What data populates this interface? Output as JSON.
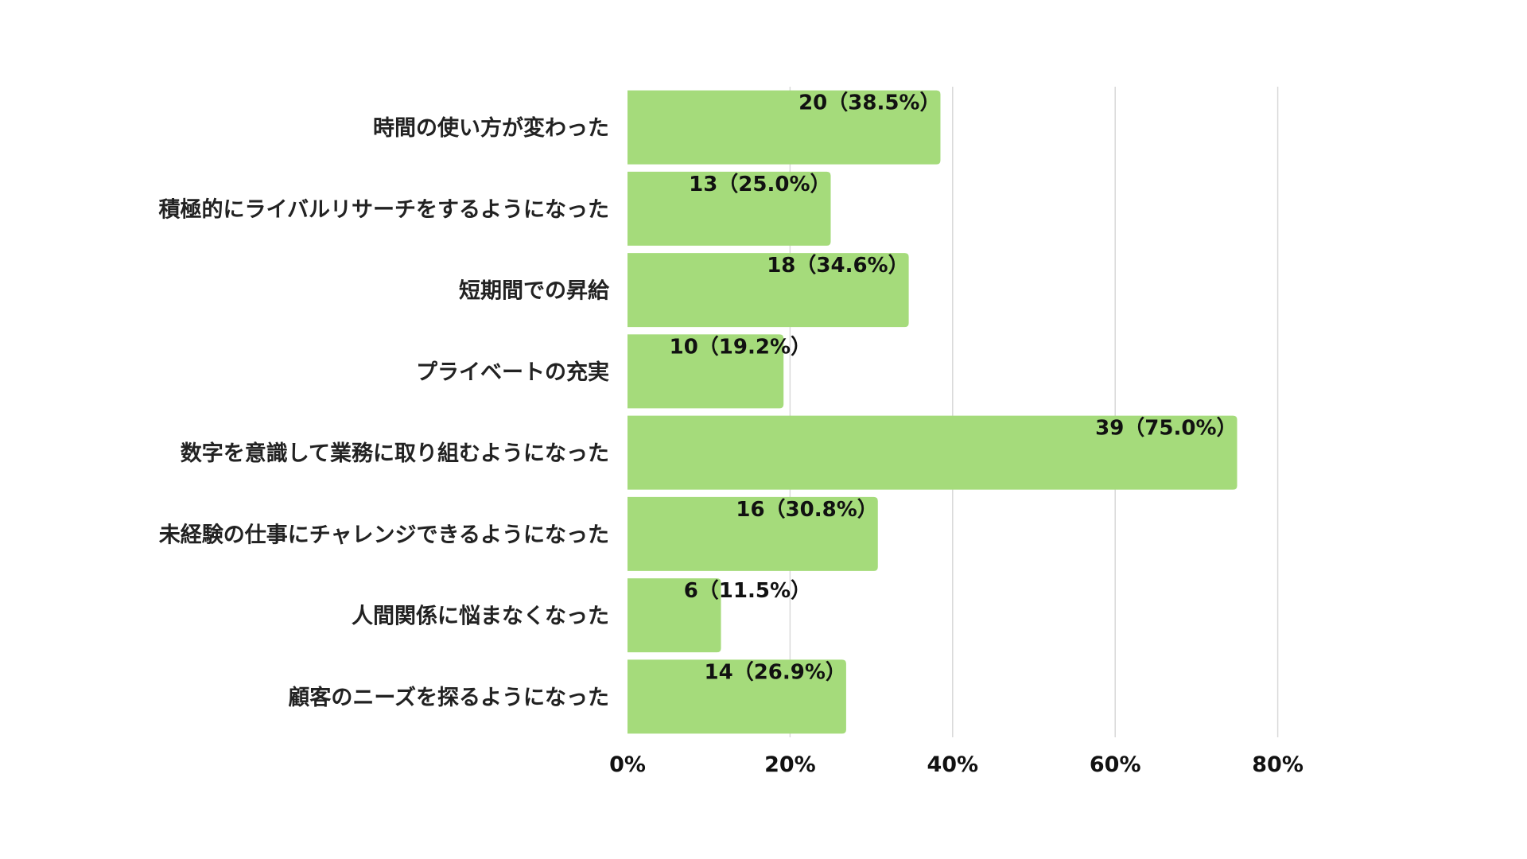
{
  "chart_data": {
    "type": "bar",
    "orientation": "horizontal",
    "title": "",
    "xlabel": "",
    "ylabel": "",
    "xlim": [
      0,
      100
    ],
    "x_ticks": [
      0,
      20,
      40,
      60,
      80
    ],
    "x_tick_labels": [
      "0%",
      "20%",
      "40%",
      "60%",
      "80%"
    ],
    "grid": true,
    "legend": "none",
    "bar_color": "#a5db7b",
    "categories": [
      "時間の使い方が変わった",
      "積極的にライバルリサーチをするようになった",
      "短期間での昇給",
      "プライベートの充実",
      "数字を意識して業務に取り組むようになった",
      "未経験の仕事にチャレンジできるようになった",
      "人間関係に悩まなくなった",
      "顧客のニーズを探るようになった"
    ],
    "counts": [
      20,
      13,
      18,
      10,
      39,
      16,
      6,
      14
    ],
    "values": [
      38.5,
      25.0,
      34.6,
      19.2,
      75.0,
      30.8,
      11.5,
      26.9
    ],
    "data_labels": [
      "20（38.5%）",
      "13（25.0%）",
      "18（34.6%）",
      "10（19.2%）",
      "39（75.0%）",
      "16（30.8%）",
      "6（11.5%）",
      "14（26.9%）"
    ]
  }
}
